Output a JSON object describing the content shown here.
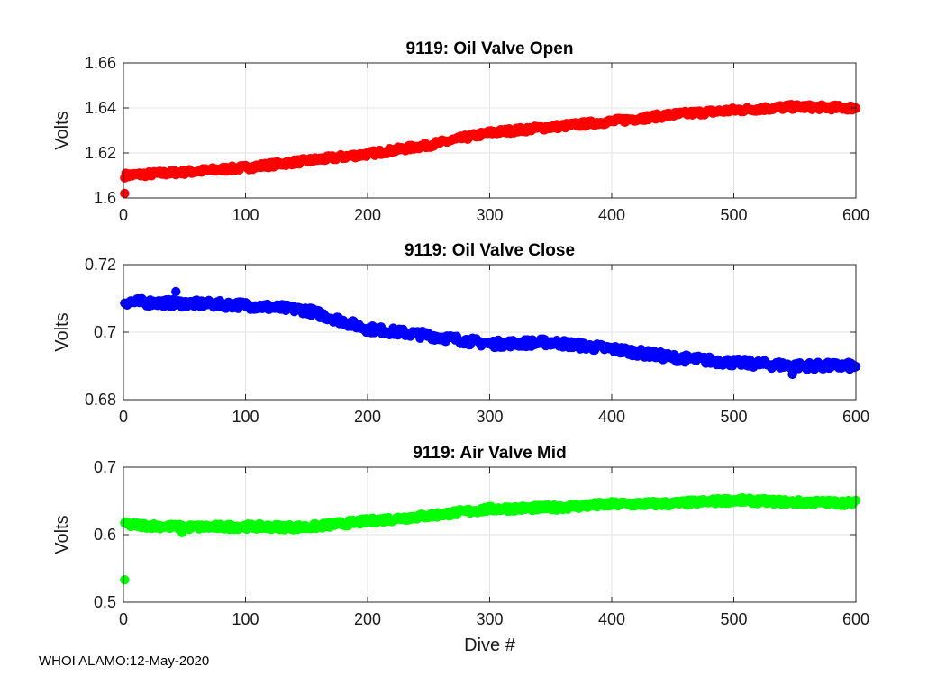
{
  "footer": "WHOI ALAMO:12-May-2020",
  "chart_data": [
    {
      "type": "scatter",
      "title": "9119: Oil Valve Open",
      "xlabel": "",
      "ylabel": "Volts",
      "xlim": [
        0,
        600
      ],
      "ylim": [
        1.6,
        1.66
      ],
      "xticks": [
        0,
        100,
        200,
        300,
        400,
        500,
        600
      ],
      "yticks": [
        1.6,
        1.62,
        1.64,
        1.66
      ],
      "ytick_labels": [
        "1.6",
        "1.62",
        "1.64",
        "1.66"
      ],
      "grid": true,
      "color": "#ff0000",
      "trend": [
        [
          0,
          1.61
        ],
        [
          50,
          1.6115
        ],
        [
          100,
          1.6135
        ],
        [
          150,
          1.6165
        ],
        [
          200,
          1.6195
        ],
        [
          250,
          1.6235
        ],
        [
          300,
          1.629
        ],
        [
          350,
          1.6315
        ],
        [
          400,
          1.634
        ],
        [
          450,
          1.637
        ],
        [
          500,
          1.639
        ],
        [
          550,
          1.6405
        ],
        [
          600,
          1.64
        ]
      ],
      "noise": 0.0011,
      "outliers": [
        [
          1,
          1.602
        ]
      ]
    },
    {
      "type": "scatter",
      "title": "9119: Oil Valve Close",
      "xlabel": "",
      "ylabel": "Volts",
      "xlim": [
        0,
        600
      ],
      "ylim": [
        0.68,
        0.72
      ],
      "xticks": [
        0,
        100,
        200,
        300,
        400,
        500,
        600
      ],
      "yticks": [
        0.68,
        0.7,
        0.72
      ],
      "ytick_labels": [
        "0.68",
        "0.7",
        "0.72"
      ],
      "grid": true,
      "color": "#0000ff",
      "trend": [
        [
          0,
          0.709
        ],
        [
          50,
          0.7085
        ],
        [
          100,
          0.708
        ],
        [
          150,
          0.7065
        ],
        [
          200,
          0.701
        ],
        [
          250,
          0.699
        ],
        [
          300,
          0.6965
        ],
        [
          350,
          0.697
        ],
        [
          400,
          0.695
        ],
        [
          450,
          0.6925
        ],
        [
          500,
          0.691
        ],
        [
          550,
          0.69
        ],
        [
          600,
          0.69
        ]
      ],
      "noise": 0.0011,
      "outliers": [
        [
          43,
          0.712
        ],
        [
          548,
          0.6875
        ]
      ]
    },
    {
      "type": "scatter",
      "title": "9119: Air Valve Mid",
      "xlabel": "Dive #",
      "ylabel": "Volts",
      "xlim": [
        0,
        600
      ],
      "ylim": [
        0.5,
        0.7
      ],
      "xticks": [
        0,
        100,
        200,
        300,
        400,
        500,
        600
      ],
      "yticks": [
        0.5,
        0.6,
        0.7
      ],
      "ytick_labels": [
        "0.5",
        "0.6",
        "0.7"
      ],
      "grid": true,
      "color": "#00ff00",
      "trend": [
        [
          0,
          0.615
        ],
        [
          50,
          0.611
        ],
        [
          100,
          0.612
        ],
        [
          150,
          0.611
        ],
        [
          200,
          0.62
        ],
        [
          250,
          0.628
        ],
        [
          300,
          0.638
        ],
        [
          350,
          0.64
        ],
        [
          400,
          0.645
        ],
        [
          450,
          0.646
        ],
        [
          500,
          0.651
        ],
        [
          550,
          0.648
        ],
        [
          600,
          0.647
        ]
      ],
      "noise": 0.004,
      "outliers": [
        [
          1,
          0.533
        ],
        [
          48,
          0.603
        ]
      ]
    }
  ]
}
